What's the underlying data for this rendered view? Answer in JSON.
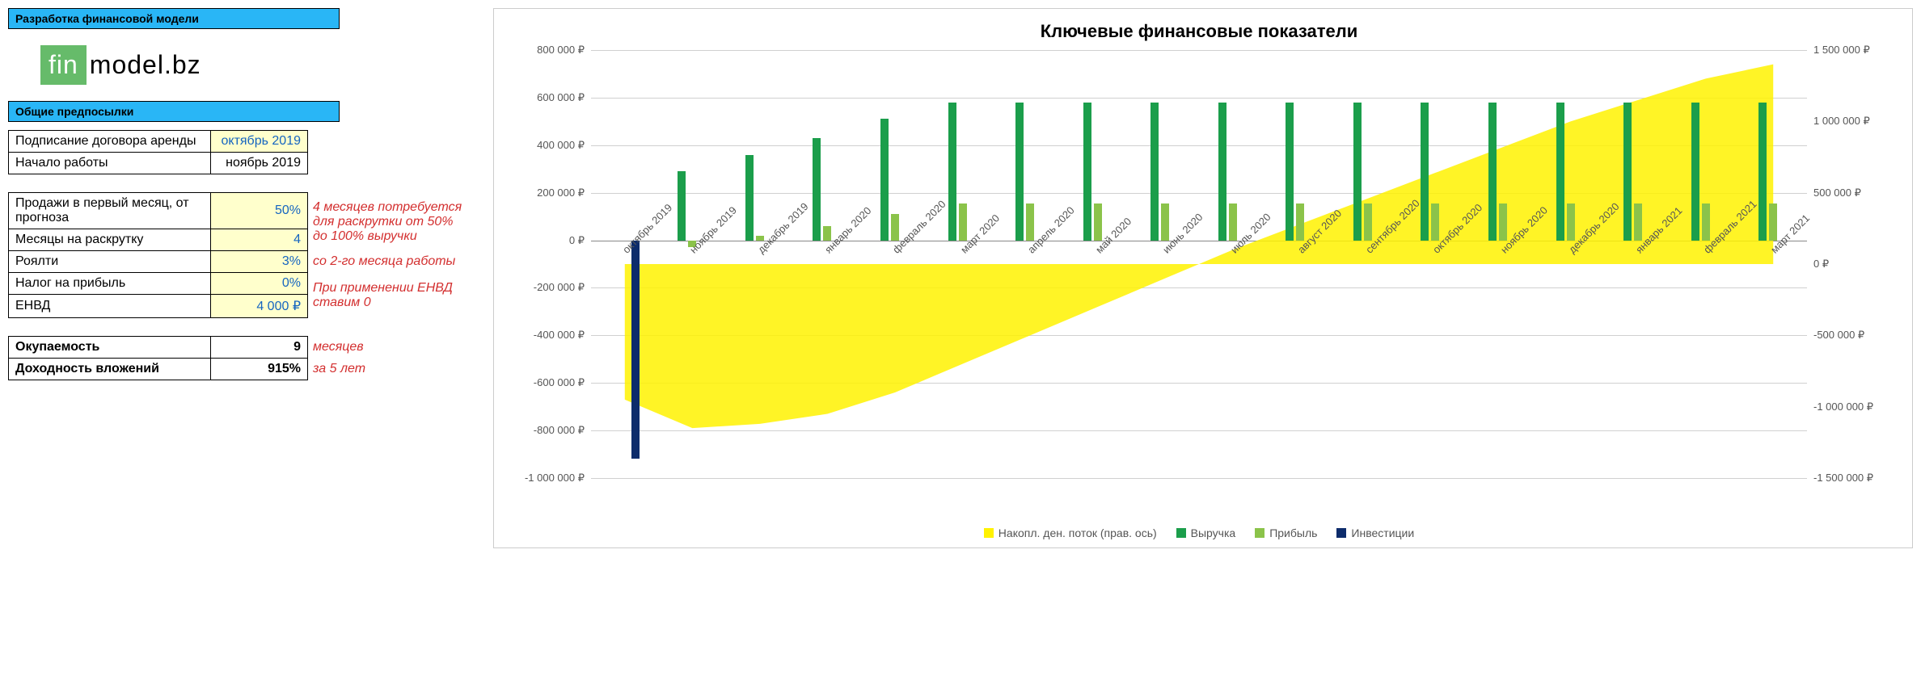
{
  "headers": {
    "title": "Разработка финансовой модели",
    "section": "Общие предпосылки"
  },
  "logo": {
    "fin": "fin",
    "rest": "model.bz"
  },
  "params": {
    "lease": {
      "label": "Подписание договора аренды",
      "value": "октябрь 2019"
    },
    "start": {
      "label": "Начало работы",
      "value": "ноябрь 2019"
    },
    "firstMonthSales": {
      "label": "Продажи в первый месяц, от прогноза",
      "value": "50%"
    },
    "rampMonths": {
      "label": "Месяцы на раскрутку",
      "value": "4"
    },
    "royalty": {
      "label": "Роялти",
      "value": "3%"
    },
    "profitTax": {
      "label": "Налог на прибыль",
      "value": "0%"
    },
    "envd": {
      "label": "ЕНВД",
      "value": "4 000 ₽"
    },
    "payback": {
      "label": "Окупаемость",
      "value": "9"
    },
    "roi": {
      "label": "Доходность вложений",
      "value": "915%"
    }
  },
  "notes": {
    "ramp": "4 месяцев потребуется для раскрутки от 50% до 100% выручки",
    "royalty": "со 2-го месяца работы",
    "profitTax": "При применении ЕНВД ставим 0",
    "payback": "месяцев",
    "roi": "за 5 лет"
  },
  "chart": {
    "title": "Ключевые финансовые показатели",
    "type": "combo-bar-area",
    "categories": [
      "октябрь 2019",
      "ноябрь 2019",
      "декабрь 2019",
      "январь 2020",
      "февраль 2020",
      "март 2020",
      "апрель 2020",
      "май 2020",
      "июнь 2020",
      "июль 2020",
      "август 2020",
      "сентябрь 2020",
      "октябрь 2020",
      "ноябрь 2020",
      "декабрь 2020",
      "январь 2021",
      "февраль 2021",
      "март 2021"
    ],
    "series": {
      "cumCashflow": {
        "label": "Накопл. ден. поток (прав. ось)",
        "type": "area",
        "axis": "right",
        "color": "#fff200",
        "opacity": 0.85,
        "values": [
          -950000,
          -1150000,
          -1120000,
          -1050000,
          -900000,
          -700000,
          -500000,
          -300000,
          -100000,
          100000,
          280000,
          460000,
          640000,
          820000,
          1000000,
          1150000,
          1300000,
          1400000
        ]
      },
      "revenue": {
        "label": "Выручка",
        "type": "bar",
        "axis": "left",
        "color": "#1b9e4b",
        "values": [
          0,
          290000,
          360000,
          430000,
          510000,
          580000,
          580000,
          580000,
          580000,
          580000,
          580000,
          580000,
          580000,
          580000,
          580000,
          580000,
          580000,
          580000
        ]
      },
      "profit": {
        "label": "Прибыль",
        "type": "bar",
        "axis": "left",
        "color": "#8bc34a",
        "values": [
          0,
          -30000,
          20000,
          60000,
          110000,
          155000,
          155000,
          155000,
          155000,
          155000,
          155000,
          155000,
          155000,
          155000,
          155000,
          155000,
          155000,
          155000
        ]
      },
      "investment": {
        "label": "Инвестиции",
        "type": "bar",
        "axis": "left",
        "color": "#0d2c6b",
        "values": [
          -920000,
          0,
          0,
          0,
          0,
          0,
          0,
          0,
          0,
          0,
          0,
          0,
          0,
          0,
          0,
          0,
          0,
          0
        ]
      }
    },
    "leftAxis": {
      "min": -1000000,
      "max": 800000,
      "step": 200000,
      "ticks": [
        -1000000,
        -800000,
        -600000,
        -400000,
        -200000,
        0,
        200000,
        400000,
        600000,
        800000
      ],
      "labels": [
        "-1 000 000 ₽",
        "-800 000 ₽",
        "-600 000 ₽",
        "-400 000 ₽",
        "-200 000 ₽",
        "0 ₽",
        "200 000 ₽",
        "400 000 ₽",
        "600 000 ₽",
        "800 000 ₽"
      ]
    },
    "rightAxis": {
      "min": -1500000,
      "max": 1500000,
      "step": 500000,
      "ticks": [
        -1500000,
        -1000000,
        -500000,
        0,
        500000,
        1000000,
        1500000
      ],
      "labels": [
        "-1 500 000 ₽",
        "-1 000 000 ₽",
        "-500 000 ₽",
        "0 ₽",
        "500 000 ₽",
        "1 000 000 ₽",
        "1 500 000 ₽"
      ]
    },
    "styling": {
      "background": "#ffffff",
      "gridColor": "#d0d0d0",
      "axisColor": "#888888",
      "barWidthPx": 10,
      "barGapPx": 3,
      "tickFontSize": 13,
      "titleFontSize": 22,
      "xLabelRotation": -45
    }
  }
}
